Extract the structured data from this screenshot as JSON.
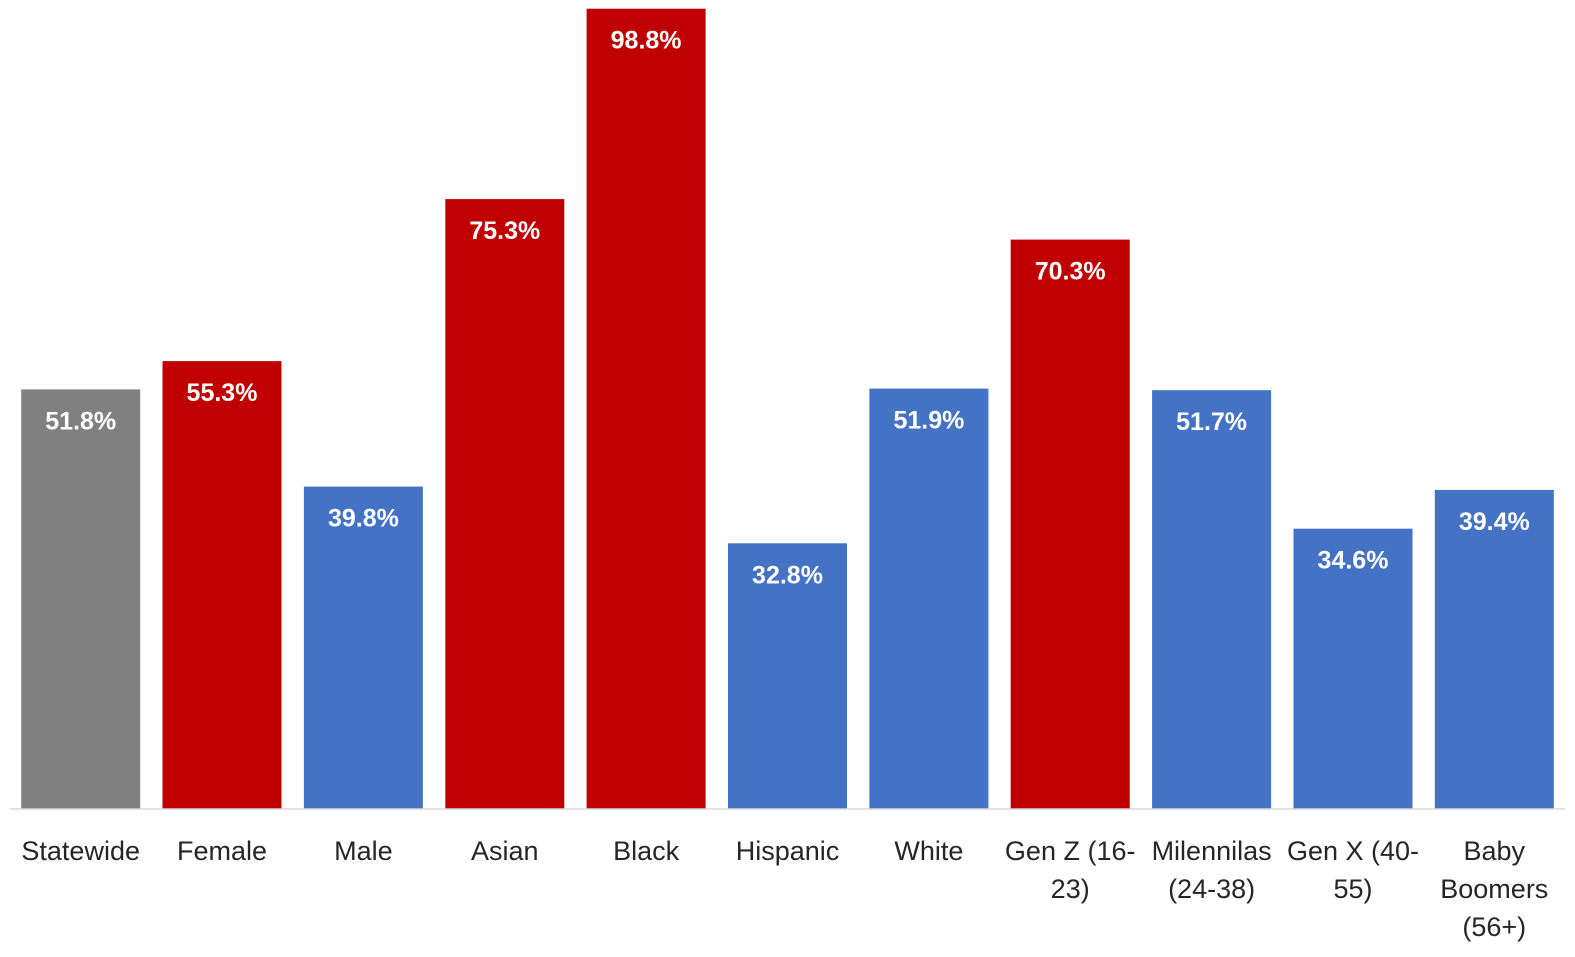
{
  "chart_data": {
    "type": "bar",
    "title": "",
    "xlabel": "",
    "ylabel": "",
    "ylim": [
      0,
      100
    ],
    "grid": false,
    "legend": "none",
    "categories": [
      "Statewide",
      "Female",
      "Male",
      "Asian",
      "Black",
      "Hispanic",
      "White",
      "Gen Z (16-23)",
      "Milennilas (24-38)",
      "Gen X (40-55)",
      "Baby Boomers (56+)"
    ],
    "category_label_lines": [
      [
        "Statewide"
      ],
      [
        "Female"
      ],
      [
        "Male"
      ],
      [
        "Asian"
      ],
      [
        "Black"
      ],
      [
        "Hispanic"
      ],
      [
        "White"
      ],
      [
        "Gen Z (16-",
        "23)"
      ],
      [
        "Milennilas",
        "(24-38)"
      ],
      [
        "Gen X (40-",
        "55)"
      ],
      [
        "Baby",
        "Boomers",
        "(56+)"
      ]
    ],
    "values": [
      51.8,
      55.3,
      39.8,
      75.3,
      98.8,
      32.8,
      51.9,
      70.3,
      51.7,
      34.6,
      39.4
    ],
    "data_labels": [
      "51.8%",
      "55.3%",
      "39.8%",
      "75.3%",
      "98.8%",
      "32.8%",
      "51.9%",
      "70.3%",
      "51.7%",
      "34.6%",
      "39.4%"
    ],
    "bar_colors": [
      "#808080",
      "#c00000",
      "#4472c4",
      "#c00000",
      "#c00000",
      "#4472c4",
      "#4472c4",
      "#c00000",
      "#4472c4",
      "#4472c4",
      "#4472c4"
    ],
    "axis_color": "#d9d9d9",
    "label_color": "#262626",
    "value_label_color": "#ffffff"
  }
}
